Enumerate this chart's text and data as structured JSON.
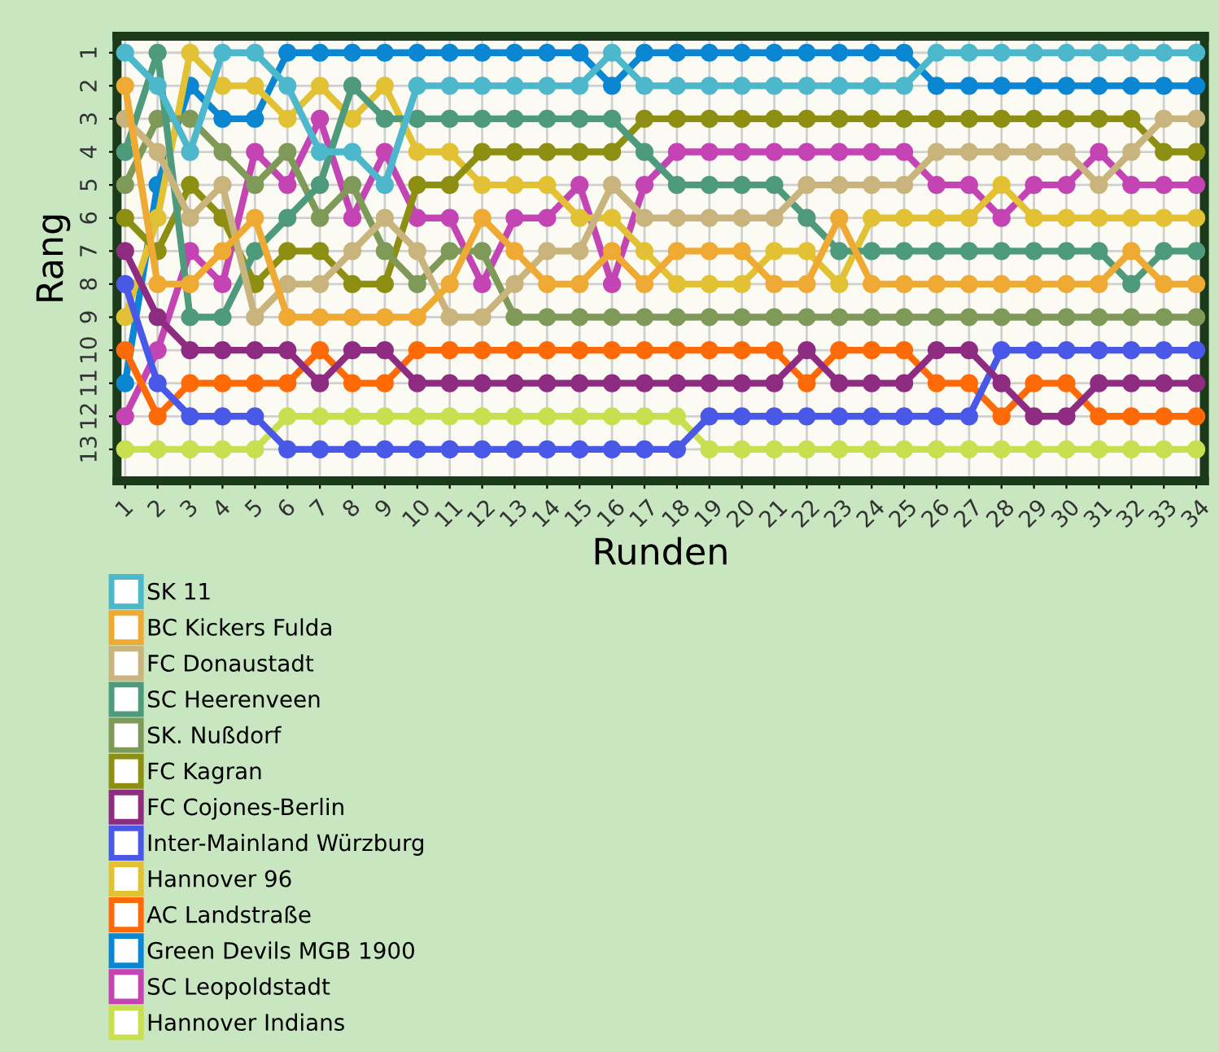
{
  "chart_data": {
    "type": "line",
    "xlabel": "Runden",
    "ylabel": "Rang",
    "x": [
      1,
      2,
      3,
      4,
      5,
      6,
      7,
      8,
      9,
      10,
      11,
      12,
      13,
      14,
      15,
      16,
      17,
      18,
      19,
      20,
      21,
      22,
      23,
      24,
      25,
      26,
      27,
      28,
      29,
      30,
      31,
      32,
      33,
      34
    ],
    "xlim": [
      0.75,
      34.25
    ],
    "xticks": [
      1,
      2,
      3,
      4,
      5,
      6,
      7,
      8,
      9,
      10,
      11,
      12,
      13,
      14,
      15,
      16,
      17,
      18,
      19,
      20,
      21,
      22,
      23,
      24,
      25,
      26,
      27,
      28,
      29,
      30,
      31,
      32,
      33,
      34
    ],
    "ylim": [
      13.95,
      0.5
    ],
    "yticks": [
      1,
      2,
      3,
      4,
      5,
      6,
      7,
      8,
      9,
      10,
      11,
      12,
      13
    ],
    "grid": true,
    "legend": "bottom",
    "marker": "circle",
    "line_style": "solid",
    "series": [
      {
        "name": "SK 11",
        "color": "#4db8cc",
        "values": [
          1,
          2,
          4,
          1,
          1,
          2,
          4,
          4,
          5,
          2,
          2,
          2,
          2,
          2,
          2,
          1,
          2,
          2,
          2,
          2,
          2,
          2,
          2,
          2,
          2,
          1,
          1,
          1,
          1,
          1,
          1,
          1,
          1,
          1
        ]
      },
      {
        "name": "BC Kickers Fulda",
        "color": "#eeaa33",
        "values": [
          2,
          8,
          8,
          7,
          6,
          9,
          9,
          9,
          9,
          9,
          8,
          6,
          7,
          8,
          8,
          7,
          8,
          7,
          7,
          7,
          8,
          8,
          6,
          8,
          8,
          8,
          8,
          8,
          8,
          8,
          8,
          7,
          8,
          8
        ]
      },
      {
        "name": "FC Donaustadt",
        "color": "#c8b47c",
        "values": [
          3,
          4,
          6,
          5,
          9,
          8,
          8,
          7,
          6,
          7,
          9,
          9,
          8,
          7,
          7,
          5,
          6,
          6,
          6,
          6,
          6,
          5,
          5,
          5,
          5,
          4,
          4,
          4,
          4,
          4,
          5,
          4,
          3,
          3
        ]
      },
      {
        "name": "SC Heerenveen",
        "color": "#4e9a7c",
        "values": [
          4,
          1,
          9,
          9,
          7,
          6,
          5,
          2,
          3,
          3,
          3,
          3,
          3,
          3,
          3,
          3,
          4,
          5,
          5,
          5,
          5,
          6,
          7,
          7,
          7,
          7,
          7,
          7,
          7,
          7,
          7,
          8,
          7,
          7
        ]
      },
      {
        "name": "SK. Nußdorf",
        "color": "#7f9a58",
        "values": [
          5,
          3,
          3,
          4,
          5,
          4,
          6,
          5,
          7,
          8,
          7,
          7,
          9,
          9,
          9,
          9,
          9,
          9,
          9,
          9,
          9,
          9,
          9,
          9,
          9,
          9,
          9,
          9,
          9,
          9,
          9,
          9,
          9,
          9
        ]
      },
      {
        "name": "FC Kagran",
        "color": "#8d8f12",
        "values": [
          6,
          7,
          5,
          6,
          8,
          7,
          7,
          8,
          8,
          5,
          5,
          4,
          4,
          4,
          4,
          4,
          3,
          3,
          3,
          3,
          3,
          3,
          3,
          3,
          3,
          3,
          3,
          3,
          3,
          3,
          3,
          3,
          4,
          4
        ]
      },
      {
        "name": "FC Cojones-Berlin",
        "color": "#8e2c82",
        "values": [
          7,
          9,
          10,
          10,
          10,
          10,
          11,
          10,
          10,
          11,
          11,
          11,
          11,
          11,
          11,
          11,
          11,
          11,
          11,
          11,
          11,
          10,
          11,
          11,
          11,
          10,
          10,
          11,
          12,
          12,
          11,
          11,
          11,
          11
        ]
      },
      {
        "name": "Inter-Mainland Würzburg",
        "color": "#4a58e8",
        "values": [
          8,
          11,
          12,
          12,
          12,
          13,
          13,
          13,
          13,
          13,
          13,
          13,
          13,
          13,
          13,
          13,
          13,
          13,
          12,
          12,
          12,
          12,
          12,
          12,
          12,
          12,
          12,
          10,
          10,
          10,
          10,
          10,
          10,
          10
        ]
      },
      {
        "name": "Hannover 96",
        "color": "#e2c234",
        "values": [
          9,
          6,
          1,
          2,
          2,
          3,
          2,
          3,
          2,
          4,
          4,
          5,
          5,
          5,
          6,
          6,
          7,
          8,
          8,
          8,
          7,
          7,
          8,
          6,
          6,
          6,
          6,
          5,
          6,
          6,
          6,
          6,
          6,
          6
        ]
      },
      {
        "name": "AC Landstraße",
        "color": "#ff6a08",
        "values": [
          10,
          12,
          11,
          11,
          11,
          11,
          10,
          11,
          11,
          10,
          10,
          10,
          10,
          10,
          10,
          10,
          10,
          10,
          10,
          10,
          10,
          11,
          10,
          10,
          10,
          11,
          11,
          12,
          11,
          11,
          12,
          12,
          12,
          12
        ]
      },
      {
        "name": "Green Devils MGB 1900",
        "color": "#0a86d2",
        "values": [
          11,
          5,
          2,
          3,
          3,
          1,
          1,
          1,
          1,
          1,
          1,
          1,
          1,
          1,
          1,
          2,
          1,
          1,
          1,
          1,
          1,
          1,
          1,
          1,
          1,
          2,
          2,
          2,
          2,
          2,
          2,
          2,
          2,
          2
        ]
      },
      {
        "name": "SC Leopoldstadt",
        "color": "#c444b4",
        "values": [
          12,
          10,
          7,
          8,
          4,
          5,
          3,
          6,
          4,
          6,
          6,
          8,
          6,
          6,
          5,
          8,
          5,
          4,
          4,
          4,
          4,
          4,
          4,
          4,
          4,
          5,
          5,
          6,
          5,
          5,
          4,
          5,
          5,
          5
        ]
      },
      {
        "name": "Hannover Indians",
        "color": "#c8e050",
        "values": [
          13,
          13,
          13,
          13,
          13,
          12,
          12,
          12,
          12,
          12,
          12,
          12,
          12,
          12,
          12,
          12,
          12,
          12,
          13,
          13,
          13,
          13,
          13,
          13,
          13,
          13,
          13,
          13,
          13,
          13,
          13,
          13,
          13,
          13
        ]
      }
    ]
  }
}
